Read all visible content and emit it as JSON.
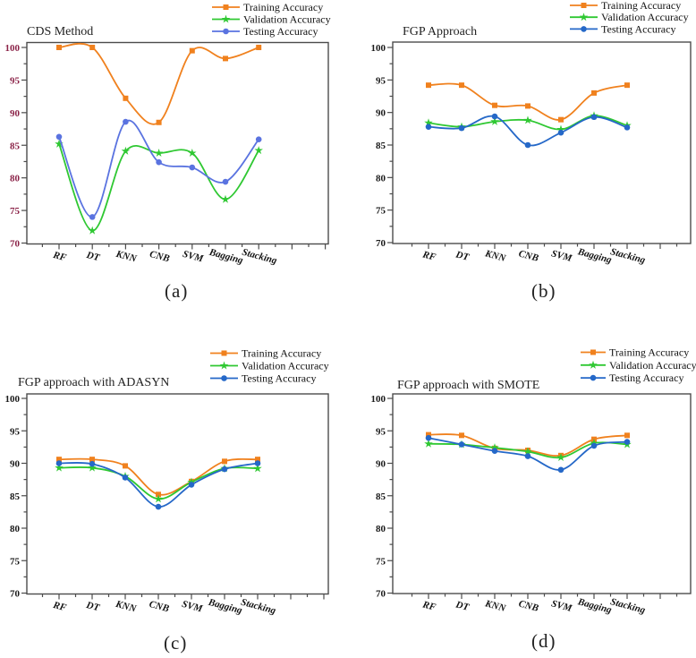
{
  "chart_data": [
    {
      "type": "line",
      "title": "CDS Method",
      "caption": "(a)",
      "categories": [
        "RF",
        "DT",
        "KNN",
        "CNB",
        "SVM",
        "Bagging",
        "Stacking"
      ],
      "yticks": [
        70,
        75,
        80,
        85,
        90,
        95,
        100
      ],
      "ylim": [
        70,
        100
      ],
      "grid": false,
      "legend_position": "top-right",
      "ytick_color": "#8B2348",
      "series": [
        {
          "name": "Training Accuracy",
          "color": "#F0811E",
          "marker": "square",
          "values": [
            100,
            100,
            92.2,
            88.5,
            99.5,
            98.3,
            100
          ]
        },
        {
          "name": "Validation Accuracy",
          "color": "#2FC832",
          "marker": "star",
          "values": [
            85.2,
            71.9,
            84.1,
            83.8,
            83.8,
            76.7,
            84.2
          ]
        },
        {
          "name": "Testing Accuracy",
          "color": "#5A73E0",
          "marker": "circle",
          "values": [
            86.3,
            74.0,
            88.6,
            82.4,
            81.6,
            79.4,
            85.9
          ]
        }
      ]
    },
    {
      "type": "line",
      "title": "FGP Approach",
      "caption": "(b)",
      "categories": [
        "RF",
        "DT",
        "KNN",
        "CNB",
        "SVM",
        "Bagging",
        "Stacking"
      ],
      "yticks": [
        70,
        75,
        80,
        85,
        90,
        95,
        100
      ],
      "ylim": [
        70,
        100
      ],
      "grid": false,
      "legend_position": "top-right",
      "ytick_color": "#1a1a1a",
      "series": [
        {
          "name": "Training Accuracy",
          "color": "#F0811E",
          "marker": "square",
          "values": [
            94.2,
            94.2,
            91.1,
            91.0,
            88.9,
            93.0,
            94.2
          ]
        },
        {
          "name": "Validation Accuracy",
          "color": "#2FC832",
          "marker": "star",
          "values": [
            88.4,
            87.8,
            88.6,
            88.8,
            87.4,
            89.5,
            88.0
          ]
        },
        {
          "name": "Testing Accuracy",
          "color": "#2568C8",
          "marker": "circle",
          "values": [
            87.8,
            87.6,
            89.4,
            85.0,
            86.9,
            89.3,
            87.7
          ]
        }
      ]
    },
    {
      "type": "line",
      "title": "FGP approach with ADASYN",
      "caption": "(c)",
      "categories": [
        "RF",
        "DT",
        "KNN",
        "CNB",
        "SVM",
        "Bagging",
        "Stacking"
      ],
      "yticks": [
        70,
        75,
        80,
        85,
        90,
        95,
        100
      ],
      "ylim": [
        70,
        100
      ],
      "grid": false,
      "legend_position": "top-right",
      "ytick_color": "#1a1a1a",
      "series": [
        {
          "name": "Training Accuracy",
          "color": "#F0811E",
          "marker": "square",
          "values": [
            90.6,
            90.6,
            89.6,
            85.2,
            87.2,
            90.3,
            90.6
          ]
        },
        {
          "name": "Validation Accuracy",
          "color": "#2FC832",
          "marker": "star",
          "values": [
            89.3,
            89.3,
            88.0,
            84.5,
            87.1,
            89.2,
            89.2
          ]
        },
        {
          "name": "Testing Accuracy",
          "color": "#2568C8",
          "marker": "circle",
          "values": [
            90.0,
            89.9,
            87.8,
            83.3,
            86.7,
            89.1,
            90.0
          ]
        }
      ]
    },
    {
      "type": "line",
      "title": "FGP approach with SMOTE",
      "caption": "(d)",
      "categories": [
        "RF",
        "DT",
        "KNN",
        "CNB",
        "SVM",
        "Bagging",
        "Stacking"
      ],
      "yticks": [
        70,
        75,
        80,
        85,
        90,
        95,
        100
      ],
      "ylim": [
        70,
        100
      ],
      "grid": false,
      "legend_position": "top-right",
      "ytick_color": "#1a1a1a",
      "series": [
        {
          "name": "Training Accuracy",
          "color": "#F0811E",
          "marker": "square",
          "values": [
            94.4,
            94.3,
            92.3,
            92.0,
            91.2,
            93.7,
            94.3
          ]
        },
        {
          "name": "Validation Accuracy",
          "color": "#2FC832",
          "marker": "star",
          "values": [
            93.0,
            92.9,
            92.4,
            91.8,
            90.9,
            93.1,
            92.9
          ]
        },
        {
          "name": "Testing Accuracy",
          "color": "#2568C8",
          "marker": "circle",
          "values": [
            93.9,
            92.9,
            91.9,
            91.1,
            89.0,
            92.7,
            93.3
          ]
        }
      ]
    }
  ]
}
